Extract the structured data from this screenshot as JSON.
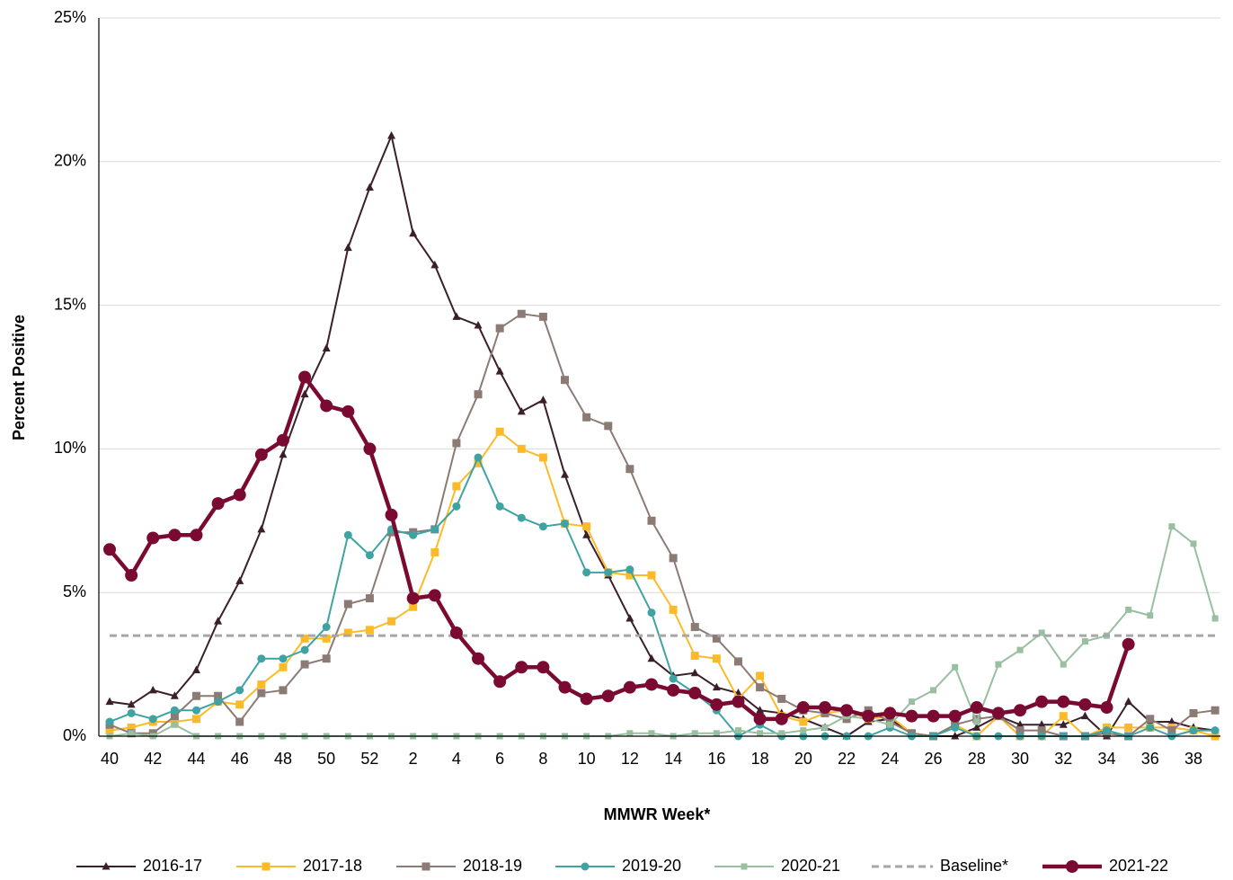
{
  "chart_data": {
    "type": "line",
    "x_label": "MMWR Week*",
    "y_label": "Percent Positive",
    "categories": [
      "40",
      null,
      "42",
      null,
      "44",
      null,
      "46",
      null,
      "48",
      null,
      "50",
      null,
      "52",
      null,
      "2",
      null,
      "4",
      null,
      "6",
      null,
      "8",
      null,
      "10",
      null,
      "12",
      null,
      "14",
      null,
      "16",
      null,
      "18",
      null,
      "20",
      null,
      "22",
      null,
      "24",
      null,
      "26",
      null,
      "28",
      null,
      "30",
      null,
      "32",
      null,
      "34",
      null,
      "36",
      null,
      "38",
      null
    ],
    "ylim": [
      0,
      25
    ],
    "yticks": [
      {
        "value": 0,
        "label": "0%"
      },
      {
        "value": 5,
        "label": "5%"
      },
      {
        "value": 10,
        "label": "10%"
      },
      {
        "value": 15,
        "label": "15%"
      },
      {
        "value": 20,
        "label": "20%"
      },
      {
        "value": 25,
        "label": "25%"
      }
    ],
    "grid": true,
    "legend": "bottom",
    "baseline": {
      "name": "Baseline*",
      "value": 3.5,
      "color": "#a6a6a6"
    },
    "series": [
      {
        "name": "2016-17",
        "color": "#3b1f2b",
        "marker": "triangle",
        "width": 2,
        "values": [
          1.2,
          1.1,
          1.6,
          1.4,
          2.3,
          4.0,
          5.4,
          7.2,
          9.8,
          11.9,
          13.5,
          17.0,
          19.1,
          20.9,
          17.5,
          16.4,
          14.6,
          14.3,
          12.7,
          11.3,
          11.7,
          9.1,
          7.0,
          5.6,
          4.1,
          2.7,
          2.1,
          2.2,
          1.7,
          1.5,
          0.9,
          0.8,
          0.6,
          0.3,
          0.0,
          0.5,
          0.6,
          0.1,
          0.0,
          0.0,
          0.3,
          0.7,
          0.4,
          0.4,
          0.4,
          0.7,
          0.0,
          1.2,
          0.5,
          0.5,
          0.3,
          0.2
        ]
      },
      {
        "name": "2017-18",
        "color": "#fbbb29",
        "marker": "square",
        "width": 2,
        "values": [
          0.2,
          0.3,
          0.5,
          0.5,
          0.6,
          1.2,
          1.1,
          1.8,
          2.4,
          3.4,
          3.4,
          3.6,
          3.7,
          4.0,
          4.5,
          6.4,
          8.7,
          9.5,
          10.6,
          10.0,
          9.7,
          7.4,
          7.3,
          5.7,
          5.6,
          5.6,
          4.4,
          2.8,
          2.7,
          1.3,
          2.1,
          0.7,
          0.5,
          0.8,
          0.9,
          0.6,
          0.7,
          0.1,
          0.0,
          0.4,
          0.0,
          0.7,
          0.0,
          0.0,
          0.7,
          0.0,
          0.3,
          0.3,
          0.3,
          0.3,
          0.2,
          0.0
        ]
      },
      {
        "name": "2018-19",
        "color": "#8c7b75",
        "marker": "square",
        "width": 2,
        "values": [
          0.4,
          0.1,
          0.1,
          0.7,
          1.4,
          1.4,
          0.5,
          1.5,
          1.6,
          2.5,
          2.7,
          4.6,
          4.8,
          7.1,
          7.1,
          7.2,
          10.2,
          11.9,
          14.2,
          14.7,
          14.6,
          12.4,
          11.1,
          10.8,
          9.3,
          7.5,
          6.2,
          3.8,
          3.4,
          2.6,
          1.7,
          1.3,
          0.9,
          0.8,
          0.6,
          0.9,
          0.5,
          0.1,
          0.0,
          0.4,
          0.6,
          0.7,
          0.2,
          0.2,
          0.0,
          0.0,
          0.1,
          0.0,
          0.6,
          0.2,
          0.8,
          0.9
        ]
      },
      {
        "name": "2019-20",
        "color": "#3fa3a3",
        "marker": "circle",
        "width": 2,
        "values": [
          0.5,
          0.8,
          0.6,
          0.9,
          0.9,
          1.2,
          1.6,
          2.7,
          2.7,
          3.0,
          3.8,
          7.0,
          6.3,
          7.2,
          7.0,
          7.2,
          8.0,
          9.7,
          8.0,
          7.6,
          7.3,
          7.4,
          5.7,
          5.7,
          5.8,
          4.3,
          2.0,
          1.5,
          0.9,
          0.0,
          0.4,
          0.0,
          0.0,
          0.0,
          0.0,
          0.0,
          0.3,
          0.0,
          0.0,
          0.3,
          0.0,
          0.0,
          0.0,
          0.0,
          0.0,
          0.0,
          0.2,
          0.0,
          0.3,
          0.0,
          0.2,
          0.2
        ]
      },
      {
        "name": "2020-21",
        "color": "#98bfa0",
        "marker": "smallsquare",
        "width": 2,
        "values": [
          0.0,
          0.1,
          0.0,
          0.4,
          0.0,
          0.0,
          0.0,
          0.0,
          0.0,
          0.0,
          0.0,
          0.0,
          0.0,
          0.0,
          0.0,
          0.0,
          0.0,
          0.0,
          0.0,
          0.0,
          0.0,
          0.0,
          0.0,
          0.0,
          0.1,
          0.1,
          0.0,
          0.1,
          0.1,
          0.2,
          0.1,
          0.1,
          0.2,
          0.3,
          0.7,
          0.6,
          0.4,
          1.2,
          1.6,
          2.4,
          0.5,
          2.5,
          3.0,
          3.6,
          2.5,
          3.3,
          3.5,
          4.4,
          4.2,
          7.3,
          6.7,
          4.1
        ]
      },
      {
        "name": "2021-22",
        "color": "#7a0a32",
        "marker": "bigcircle",
        "width": 4.5,
        "values": [
          6.5,
          5.6,
          6.9,
          7.0,
          7.0,
          8.1,
          8.4,
          9.8,
          10.3,
          12.5,
          11.5,
          11.3,
          10.0,
          7.7,
          4.8,
          4.9,
          3.6,
          2.7,
          1.9,
          2.4,
          2.4,
          1.7,
          1.3,
          1.4,
          1.7,
          1.8,
          1.6,
          1.5,
          1.1,
          1.2,
          0.6,
          0.6,
          1.0,
          1.0,
          0.9,
          0.7,
          0.8,
          0.7,
          0.7,
          0.7,
          1.0,
          0.8,
          0.9,
          1.2,
          1.2,
          1.1,
          1.0,
          3.2,
          null,
          null,
          null,
          null
        ]
      }
    ]
  }
}
